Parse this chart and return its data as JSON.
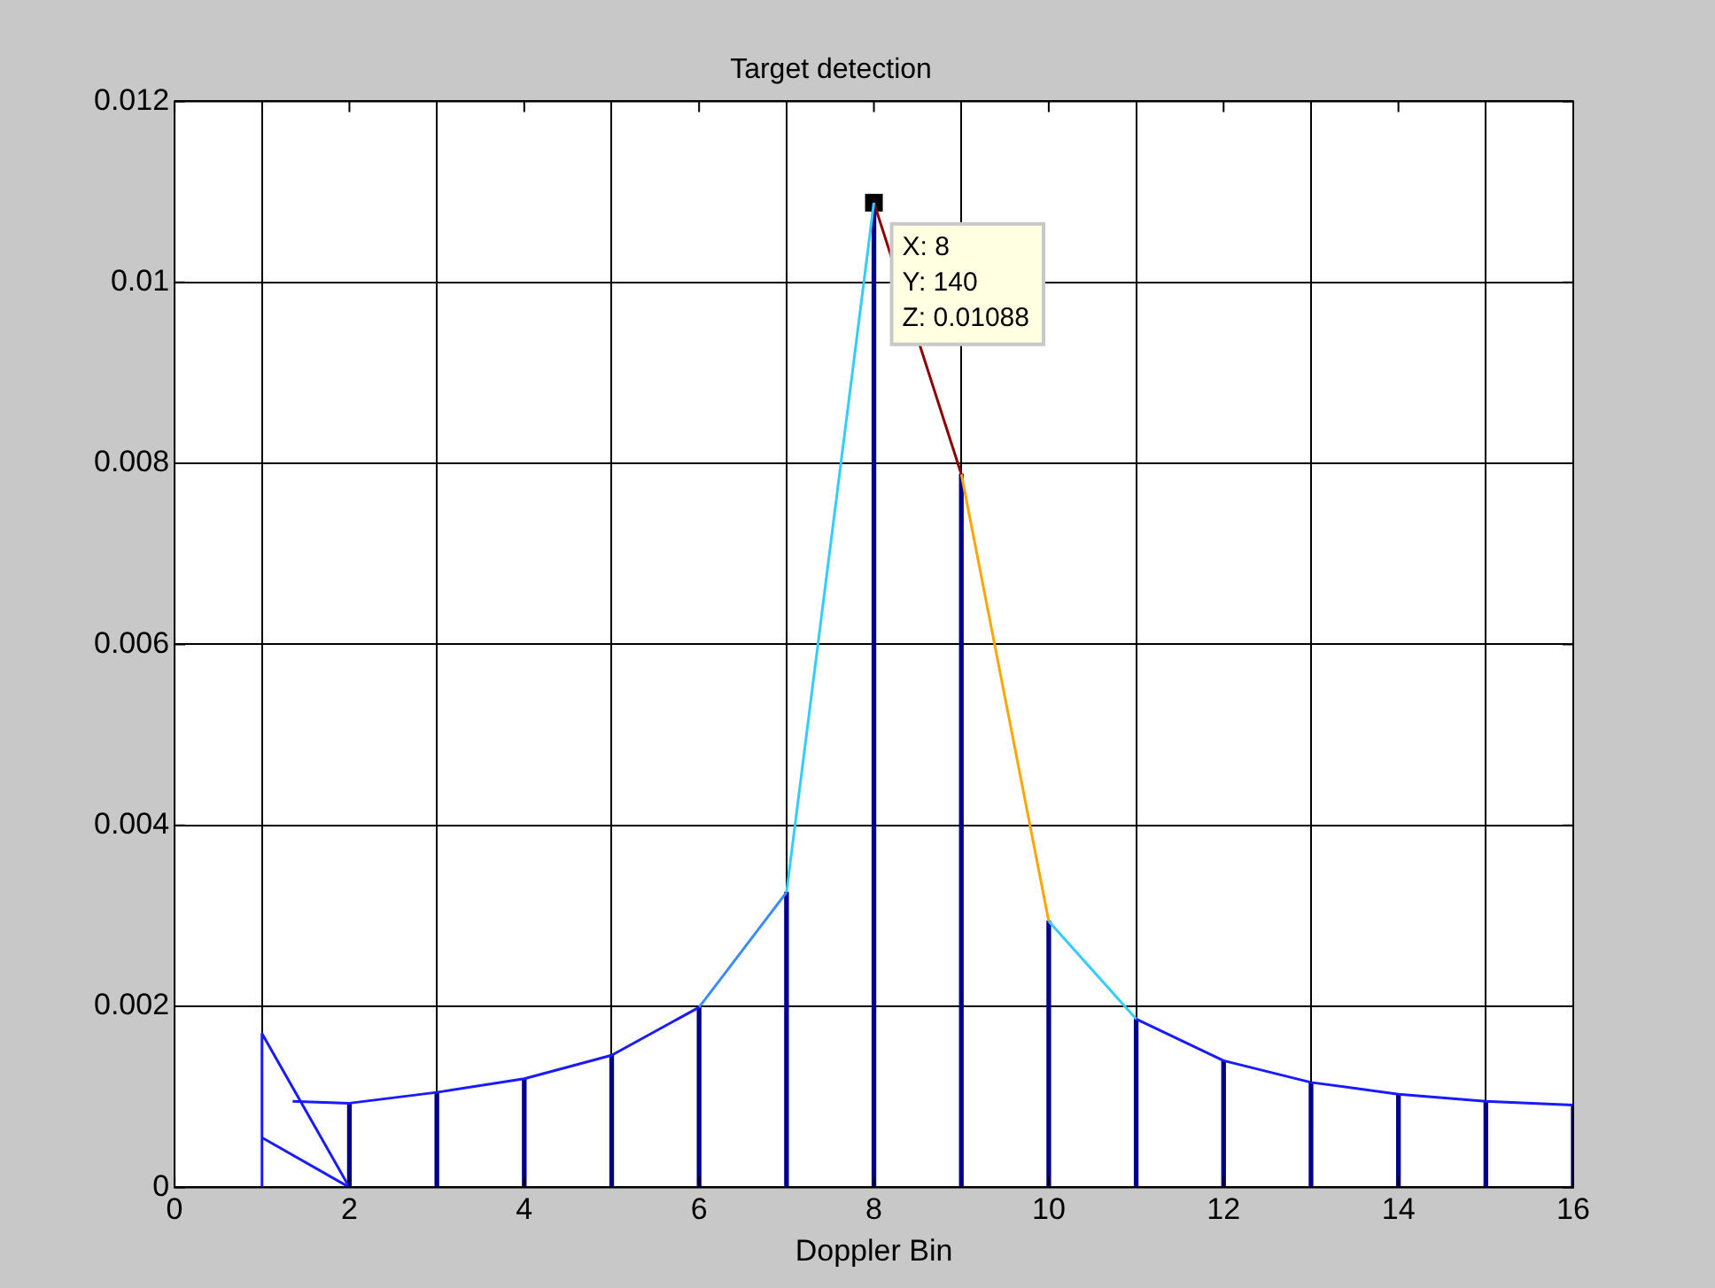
{
  "chart_data": {
    "type": "line",
    "title": "Target detection",
    "xlabel": "Doppler Bin",
    "xlim": [
      0,
      16
    ],
    "xticks": [
      0,
      2,
      4,
      6,
      8,
      10,
      12,
      14,
      16
    ],
    "ylim": [
      0,
      0.012
    ],
    "yticks": [
      0,
      0.002,
      0.004,
      0.006,
      0.008,
      0.01,
      0.012
    ],
    "grid": true,
    "legend": false,
    "series": [
      {
        "type": "bar",
        "color": "#00008b",
        "x": [
          2,
          3,
          4,
          5,
          6,
          7,
          8,
          9,
          10,
          11,
          12,
          13,
          14,
          15,
          16
        ],
        "values": [
          0.00093,
          0.00105,
          0.0012,
          0.00146,
          0.00199,
          0.00326,
          0.01088,
          0.00788,
          0.00294,
          0.00186,
          0.0014,
          0.00116,
          0.00103,
          0.00095,
          0.00091
        ]
      },
      {
        "color": "#1a1aff",
        "x": [
          1.35,
          2,
          3,
          4,
          5,
          6
        ],
        "values": [
          0.00095,
          0.00093,
          0.00105,
          0.0012,
          0.00146,
          0.00199
        ]
      },
      {
        "color": "#3b8cff",
        "x": [
          6,
          7
        ],
        "values": [
          0.00199,
          0.00326
        ]
      },
      {
        "color": "#33ccff",
        "x": [
          7,
          8
        ],
        "values": [
          0.00326,
          0.01088
        ]
      },
      {
        "color": "#8b0000",
        "x": [
          8,
          9
        ],
        "values": [
          0.01088,
          0.00788
        ]
      },
      {
        "color": "#ffa500",
        "x": [
          9,
          10
        ],
        "values": [
          0.00788,
          0.00294
        ]
      },
      {
        "color": "#33ccff",
        "x": [
          10,
          11
        ],
        "values": [
          0.00294,
          0.00186
        ]
      },
      {
        "color": "#1a1aff",
        "x": [
          11,
          12,
          13,
          14,
          15,
          16
        ],
        "values": [
          0.00186,
          0.0014,
          0.00116,
          0.00103,
          0.00095,
          0.00091
        ]
      },
      {
        "color": "#1a1aff",
        "x": [
          1,
          1,
          2
        ],
        "values": [
          0,
          0.0017,
          0
        ]
      },
      {
        "color": "#1a1aff",
        "x": [
          1,
          2
        ],
        "values": [
          0.00055,
          0
        ]
      }
    ],
    "annotations": [
      {
        "text": "X: 8\nY: 140\nZ: 0.01088",
        "x": 8,
        "y": 0.01088
      }
    ]
  }
}
